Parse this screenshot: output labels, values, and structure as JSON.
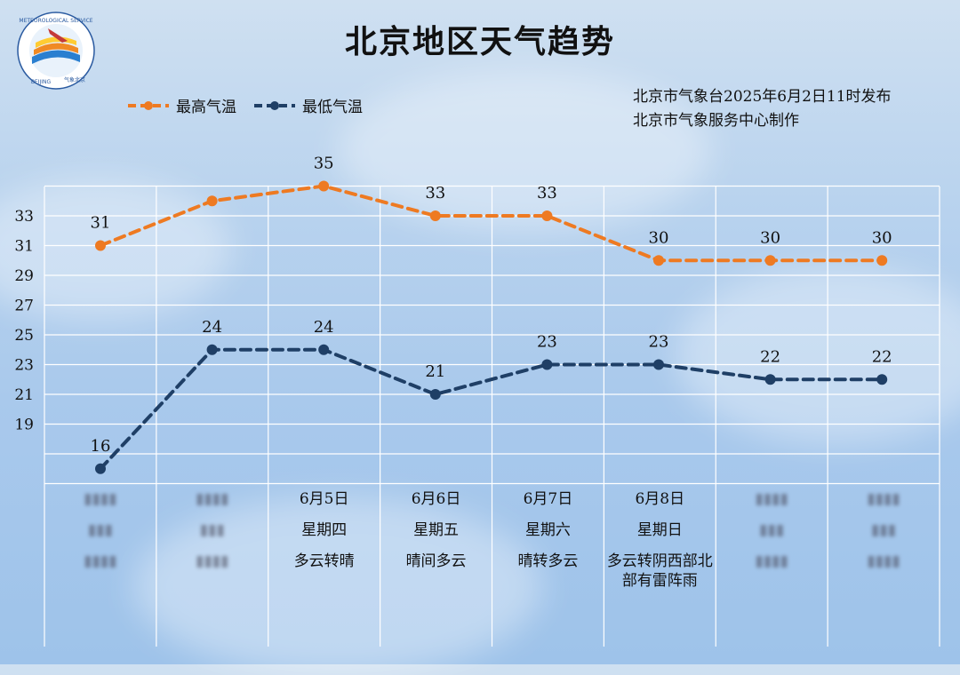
{
  "title": "北京地区天气趋势",
  "issuer": {
    "line1": "北京市气象台2025年6月2日11时发布",
    "line2": "北京市气象服务中心制作"
  },
  "logo": {
    "text_top": "METEOROLOGICAL SERVICE",
    "text_bottom_left": "BEIJING",
    "text_bottom_right": "气象北京",
    "icon": "meteorological-service-logo"
  },
  "colors": {
    "high": "#ee7a22",
    "low": "#1f3f66",
    "grid": "#ffffff"
  },
  "chart_data": {
    "type": "line",
    "title": "北京地区天气趋势",
    "categories": [
      "",
      "",
      "6月5日",
      "6月6日",
      "6月7日",
      "6月8日",
      "",
      ""
    ],
    "series": [
      {
        "name": "最高气温",
        "values": [
          31,
          34,
          35,
          33,
          33,
          30,
          30,
          30
        ],
        "labels": [
          "31",
          "",
          "35",
          "33",
          "33",
          "30",
          "30",
          "30"
        ]
      },
      {
        "name": "最低气温",
        "values": [
          16,
          24,
          24,
          21,
          23,
          23,
          22,
          22
        ],
        "labels": [
          "16",
          "24",
          "24",
          "21",
          "23",
          "23",
          "22",
          "22"
        ]
      }
    ],
    "yticks": [
      "33",
      "31",
      "29",
      "27",
      "25",
      "23",
      "21",
      "19"
    ],
    "ylim": [
      15,
      35
    ],
    "grid": true,
    "legend": "top-left"
  },
  "days": [
    {
      "date": "",
      "weekday": "",
      "weather": "",
      "blurred": true
    },
    {
      "date": "",
      "weekday": "",
      "weather": "",
      "blurred": true
    },
    {
      "date": "6月5日",
      "weekday": "星期四",
      "weather": "多云转晴",
      "blurred": false
    },
    {
      "date": "6月6日",
      "weekday": "星期五",
      "weather": "晴间多云",
      "blurred": false
    },
    {
      "date": "6月7日",
      "weekday": "星期六",
      "weather": "晴转多云",
      "blurred": false
    },
    {
      "date": "6月8日",
      "weekday": "星期日",
      "weather": "多云转阴西部北部有雷阵雨",
      "blurred": false
    },
    {
      "date": "",
      "weekday": "",
      "weather": "",
      "blurred": true
    },
    {
      "date": "",
      "weekday": "",
      "weather": "",
      "blurred": true
    }
  ]
}
